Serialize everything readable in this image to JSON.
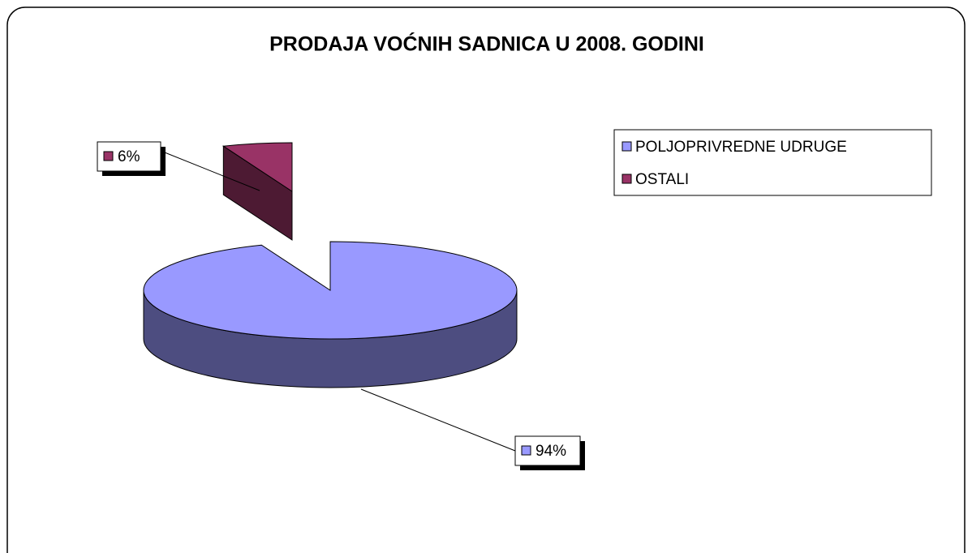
{
  "chart_data": {
    "type": "pie",
    "title": "PRODAJA VOĆNIH SADNICA U 2008. GODINI",
    "categories": [
      "POLJOPRIVREDNE UDRUGE",
      "OSTALI"
    ],
    "values": [
      94,
      6
    ],
    "value_labels": [
      "94%",
      "6%"
    ],
    "colors": [
      "#9999ff",
      "#993366"
    ],
    "legend": "right"
  }
}
